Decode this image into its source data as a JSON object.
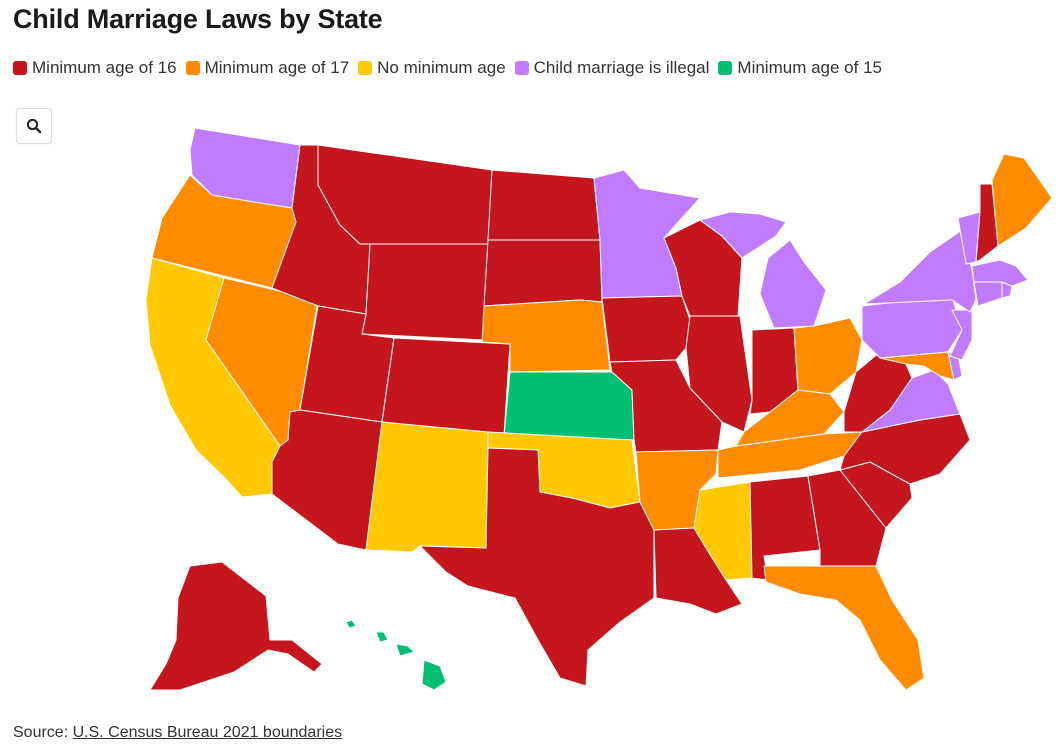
{
  "title": "Child Marriage Laws by State",
  "legend": [
    {
      "label": "Minimum age of 16",
      "color": "#c4161c"
    },
    {
      "label": "Minimum age of 17",
      "color": "#ff8b00"
    },
    {
      "label": "No minimum age",
      "color": "#ffc800"
    },
    {
      "label": "Child marriage is illegal",
      "color": "#c17bff"
    },
    {
      "label": "Minimum age of 15",
      "color": "#00bf73"
    }
  ],
  "zoom_icon": "search-icon",
  "source": {
    "prefix": "Source: ",
    "link_text": "U.S. Census Bureau 2021 boundaries"
  },
  "map_data": {
    "type": "choropleth",
    "states": {
      "Alabama": "Minimum age of 16",
      "Alaska": "Minimum age of 16",
      "Arizona": "Minimum age of 16",
      "Arkansas": "Minimum age of 17",
      "California": "No minimum age",
      "Colorado": "Minimum age of 16",
      "Connecticut": "Child marriage is illegal",
      "Delaware": "Child marriage is illegal",
      "Florida": "Minimum age of 17",
      "Georgia": "Minimum age of 16",
      "Hawaii": "Minimum age of 15",
      "Idaho": "Minimum age of 16",
      "Illinois": "Minimum age of 16",
      "Indiana": "Minimum age of 16",
      "Iowa": "Minimum age of 16",
      "Kansas": "Minimum age of 15",
      "Kentucky": "Minimum age of 17",
      "Louisiana": "Minimum age of 16",
      "Maine": "Minimum age of 17",
      "Maryland": "Minimum age of 17",
      "Massachusetts": "Child marriage is illegal",
      "Michigan": "Child marriage is illegal",
      "Minnesota": "Child marriage is illegal",
      "Mississippi": "No minimum age",
      "Missouri": "Minimum age of 16",
      "Montana": "Minimum age of 16",
      "Nebraska": "Minimum age of 17",
      "Nevada": "Minimum age of 17",
      "New Hampshire": "Minimum age of 16",
      "New Jersey": "Child marriage is illegal",
      "New Mexico": "No minimum age",
      "New York": "Child marriage is illegal",
      "North Carolina": "Minimum age of 16",
      "North Dakota": "Minimum age of 16",
      "Ohio": "Minimum age of 17",
      "Oklahoma": "No minimum age",
      "Oregon": "Minimum age of 17",
      "Pennsylvania": "Child marriage is illegal",
      "Rhode Island": "Child marriage is illegal",
      "South Carolina": "Minimum age of 16",
      "South Dakota": "Minimum age of 16",
      "Tennessee": "Minimum age of 17",
      "Texas": "Minimum age of 16",
      "Utah": "Minimum age of 16",
      "Vermont": "Child marriage is illegal",
      "Virginia": "Child marriage is illegal",
      "Washington": "Child marriage is illegal",
      "West Virginia": "Minimum age of 16",
      "Wisconsin": "Minimum age of 16",
      "Wyoming": "Minimum age of 16"
    }
  }
}
